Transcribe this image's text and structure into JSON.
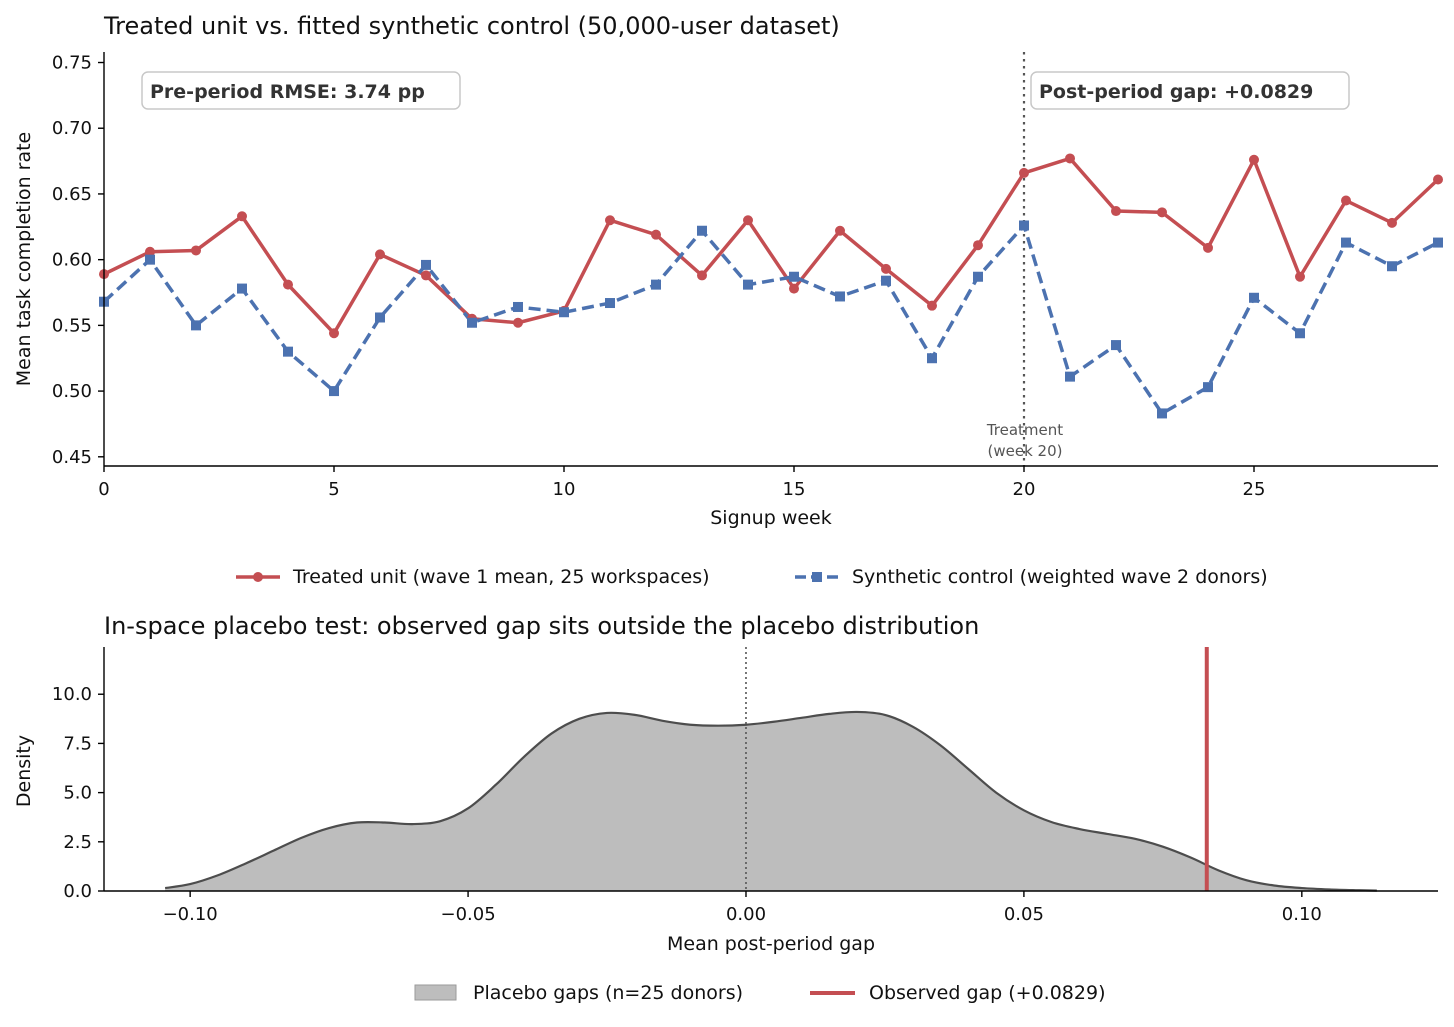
{
  "chart_data": [
    {
      "type": "line",
      "title": "Treated unit vs. fitted synthetic control (50,000-user dataset)",
      "xlabel": "Signup week",
      "ylabel": "Mean task completion rate",
      "xlim": [
        0,
        29
      ],
      "ylim": [
        0.443,
        0.758
      ],
      "xticks": [
        "0",
        "5",
        "10",
        "15",
        "20",
        "25"
      ],
      "xtick_values": [
        0,
        5,
        10,
        15,
        20,
        25
      ],
      "yticks": [
        "0.45",
        "0.50",
        "0.55",
        "0.60",
        "0.65",
        "0.70",
        "0.75"
      ],
      "ytick_values": [
        0.45,
        0.5,
        0.55,
        0.6,
        0.65,
        0.7,
        0.75
      ],
      "x": [
        0,
        1,
        2,
        3,
        4,
        5,
        6,
        7,
        8,
        9,
        10,
        11,
        12,
        13,
        14,
        15,
        16,
        17,
        18,
        19,
        20,
        21,
        22,
        23,
        24,
        25,
        26,
        27,
        28,
        29
      ],
      "series": [
        {
          "name": "Treated unit (wave 1 mean, 25 workspaces)",
          "color": "#c44e52",
          "style": "solid",
          "marker": "circle",
          "values": [
            0.589,
            0.606,
            0.607,
            0.633,
            0.581,
            0.544,
            0.604,
            0.588,
            0.555,
            0.552,
            0.561,
            0.63,
            0.619,
            0.588,
            0.63,
            0.578,
            0.622,
            0.593,
            0.565,
            0.611,
            0.666,
            0.677,
            0.637,
            0.636,
            0.609,
            0.676,
            0.587,
            0.645,
            0.628,
            0.661
          ]
        },
        {
          "name": "Synthetic control (weighted wave 2 donors)",
          "color": "#4c72b0",
          "style": "dashed",
          "marker": "square",
          "values": [
            0.568,
            0.6,
            0.55,
            0.578,
            0.53,
            0.5,
            0.556,
            0.596,
            0.552,
            0.564,
            0.56,
            0.567,
            0.581,
            0.622,
            0.581,
            0.587,
            0.572,
            0.584,
            0.525,
            0.587,
            0.626,
            0.511,
            0.535,
            0.483,
            0.503,
            0.571,
            0.544,
            0.613,
            0.595,
            0.613
          ]
        }
      ],
      "treatment_line": {
        "x": 20,
        "label_line1": "Treatment",
        "label_line2": "(week 20)"
      },
      "annotations": [
        "Pre-period RMSE: 3.74 pp",
        "Post-period gap: +0.0829"
      ],
      "legend_placement": "below",
      "grid": false
    },
    {
      "type": "area",
      "title": "In-space placebo test: observed gap sits outside the placebo distribution",
      "xlabel": "Mean post-period gap",
      "ylabel": "Density",
      "xlim": [
        -0.1155,
        0.1245
      ],
      "ylim": [
        0,
        12.4
      ],
      "xticks": [
        "−0.10",
        "−0.05",
        "0.00",
        "0.05",
        "0.10"
      ],
      "xtick_values": [
        -0.1,
        -0.05,
        0,
        0.05,
        0.1
      ],
      "yticks": [
        "0.0",
        "2.5",
        "5.0",
        "7.5",
        "10.0"
      ],
      "ytick_values": [
        0,
        2.5,
        5,
        7.5,
        10
      ],
      "density_x": [
        -0.1045,
        -0.1,
        -0.095,
        -0.09,
        -0.085,
        -0.08,
        -0.075,
        -0.07,
        -0.065,
        -0.06,
        -0.055,
        -0.05,
        -0.045,
        -0.04,
        -0.035,
        -0.03,
        -0.025,
        -0.02,
        -0.015,
        -0.01,
        -0.005,
        0.0,
        0.005,
        0.01,
        0.015,
        0.02,
        0.025,
        0.03,
        0.035,
        0.04,
        0.045,
        0.05,
        0.055,
        0.06,
        0.065,
        0.07,
        0.075,
        0.08,
        0.085,
        0.09,
        0.095,
        0.1,
        0.105,
        0.11,
        0.1135
      ],
      "density_y": [
        0.15,
        0.35,
        0.8,
        1.4,
        2.05,
        2.7,
        3.2,
        3.48,
        3.48,
        3.4,
        3.55,
        4.2,
        5.4,
        6.8,
        8.0,
        8.75,
        9.05,
        8.95,
        8.65,
        8.45,
        8.4,
        8.45,
        8.6,
        8.8,
        9.0,
        9.1,
        8.95,
        8.35,
        7.4,
        6.2,
        5.0,
        4.1,
        3.5,
        3.15,
        2.9,
        2.65,
        2.25,
        1.7,
        1.05,
        0.55,
        0.28,
        0.15,
        0.08,
        0.04,
        0.02
      ],
      "observed_gap": 0.0829,
      "zero_line": 0,
      "series": [
        {
          "name": "Placebo gaps (n=25 donors)",
          "color": "#bdbdbd",
          "edge": "#4d4d4d"
        },
        {
          "name": "Observed gap (+0.0829)",
          "color": "#c44e52"
        }
      ],
      "legend_placement": "below",
      "grid": false
    }
  ]
}
